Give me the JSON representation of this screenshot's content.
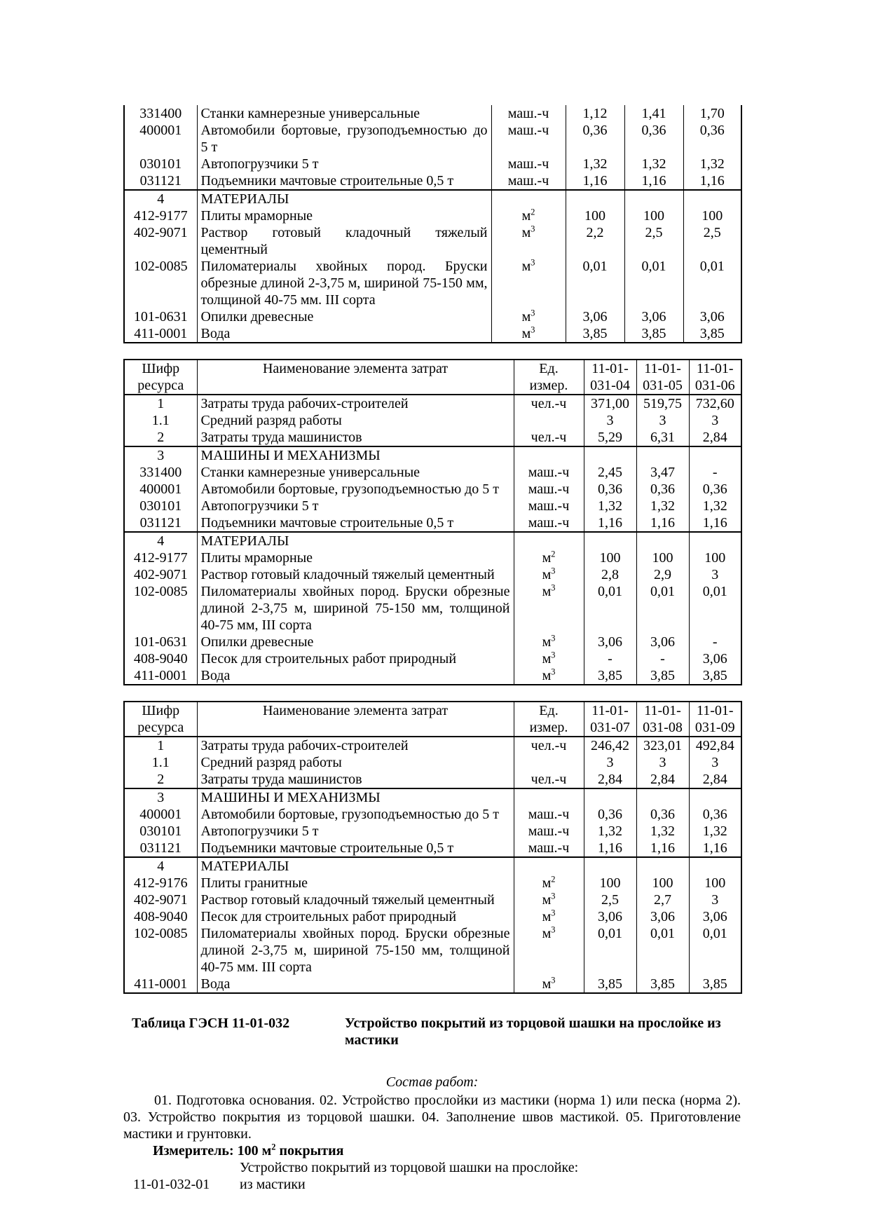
{
  "page": {
    "background": "#ffffff",
    "text_color": "#000000",
    "border_color": "#000000"
  },
  "tables": [
    {
      "title": "continuation of table 11-01-031 (norms 01-03)",
      "header": null,
      "rows": [
        {
          "code": "331400",
          "name": "Станки камнерезные универсальные",
          "unit": "маш.-ч",
          "values": [
            "1,12",
            "1,41",
            "1,70"
          ]
        },
        {
          "code": "400001",
          "name": "Автомобили бортовые, грузоподъемностью до 5 т",
          "unit": "маш.-ч",
          "values": [
            "0,36",
            "0,36",
            "0,36"
          ]
        },
        {
          "code": "030101",
          "name": "Автопогрузчики 5 т",
          "unit": "маш.-ч",
          "values": [
            "1,32",
            "1,32",
            "1,32"
          ]
        },
        {
          "code": "031121",
          "name": "Подъемники мачтовые строительные 0,5 т",
          "unit": "маш.-ч",
          "values": [
            "1,16",
            "1,16",
            "1,16"
          ]
        },
        {
          "code": "4",
          "name": "МАТЕРИАЛЫ",
          "section": true,
          "unit": "",
          "values": [
            "",
            "",
            ""
          ]
        },
        {
          "code": "412-9177",
          "name": "Плиты мраморные",
          "unit": "м2",
          "values": [
            "100",
            "100",
            "100"
          ]
        },
        {
          "code": "402-9071",
          "name": "Раствор готовый кладочный тяжелый цементный",
          "unit": "м3",
          "values": [
            "2,2",
            "2,5",
            "2,5"
          ]
        },
        {
          "code": "102-0085",
          "name": "Пиломатериалы хвойных пород. Бруски обрезные длиной 2-3,75 м, шириной 75-150 мм, толщиной 40-75 мм. III сорта",
          "unit": "м3",
          "values": [
            "0,01",
            "0,01",
            "0,01"
          ]
        },
        {
          "code": "101-0631",
          "name": "Опилки древесные",
          "unit": "м3",
          "values": [
            "3,06",
            "3,06",
            "3,06"
          ]
        },
        {
          "code": "411-0001",
          "name": "Вода",
          "unit": "м3",
          "values": [
            "3,85",
            "3,85",
            "3,85"
          ]
        }
      ]
    },
    {
      "title": "table 11-01-031 norms 04-06",
      "header": {
        "code": "Шифр\nресурса",
        "name": "Наименование элемента затрат",
        "unit": "Ед.\nизмер.",
        "norms": [
          "11-01-\n031-04",
          "11-01-\n031-05",
          "11-01-\n031-06"
        ]
      },
      "rows": [
        {
          "code": "1",
          "name": "Затраты труда рабочих-строителей",
          "unit": "чел.-ч",
          "values": [
            "371,00",
            "519,75",
            "732,60"
          ]
        },
        {
          "code": "1.1",
          "name": "Средний разряд работы",
          "unit": "",
          "values": [
            "3",
            "3",
            "3"
          ]
        },
        {
          "code": "2",
          "name": "Затраты труда машинистов",
          "unit": "чел.-ч",
          "values": [
            "5,29",
            "6,31",
            "2,84"
          ]
        },
        {
          "code": "3",
          "name": "МАШИНЫ И МЕХАНИЗМЫ",
          "section": true,
          "unit": "",
          "values": [
            "",
            "",
            ""
          ]
        },
        {
          "code": "331400",
          "name": "Станки камнерезные универсальные",
          "unit": "маш.-ч",
          "values": [
            "2,45",
            "3,47",
            "-"
          ]
        },
        {
          "code": "400001",
          "name": "Автомобили бортовые, грузоподъемностью до 5 т",
          "unit": "маш.-ч",
          "values": [
            "0,36",
            "0,36",
            "0,36"
          ]
        },
        {
          "code": "030101",
          "name": "Автопогрузчики 5 т",
          "unit": "маш.-ч",
          "values": [
            "1,32",
            "1,32",
            "1,32"
          ]
        },
        {
          "code": "031121",
          "name": "Подъемники мачтовые строительные 0,5 т",
          "unit": "маш.-ч",
          "values": [
            "1,16",
            "1,16",
            "1,16"
          ]
        },
        {
          "code": "4",
          "name": "МАТЕРИАЛЫ",
          "section": true,
          "unit": "",
          "values": [
            "",
            "",
            ""
          ]
        },
        {
          "code": "412-9177",
          "name": "Плиты мраморные",
          "unit": "м2",
          "values": [
            "100",
            "100",
            "100"
          ]
        },
        {
          "code": "402-9071",
          "name": "Раствор готовый кладочный тяжелый цементный",
          "unit": "м3",
          "values": [
            "2,8",
            "2,9",
            "3"
          ]
        },
        {
          "code": "102-0085",
          "name": "Пиломатериалы хвойных пород. Бруски обрезные длиной 2-3,75 м, шириной 75-150 мм, толщиной 40-75 мм, III сорта",
          "unit": "м3",
          "values": [
            "0,01",
            "0,01",
            "0,01"
          ]
        },
        {
          "code": "101-0631",
          "name": "Опилки древесные",
          "unit": "м3",
          "values": [
            "3,06",
            "3,06",
            "-"
          ]
        },
        {
          "code": "408-9040",
          "name": "Песок для строительных работ природный",
          "unit": "м3",
          "values": [
            "-",
            "-",
            "3,06"
          ]
        },
        {
          "code": "411-0001",
          "name": "Вода",
          "unit": "м3",
          "values": [
            "3,85",
            "3,85",
            "3,85"
          ]
        }
      ]
    },
    {
      "title": "table 11-01-031 norms 07-09",
      "header": {
        "code": "Шифр\nресурса",
        "name": "Наименование элемента затрат",
        "unit": "Ед.\nизмер.",
        "norms": [
          "11-01-\n031-07",
          "11-01-\n031-08",
          "11-01-\n031-09"
        ]
      },
      "rows": [
        {
          "code": "1",
          "name": "Затраты труда рабочих-строителей",
          "unit": "чел.-ч",
          "values": [
            "246,42",
            "323,01",
            "492,84"
          ]
        },
        {
          "code": "1.1",
          "name": "Средний разряд работы",
          "unit": "",
          "values": [
            "3",
            "3",
            "3"
          ]
        },
        {
          "code": "2",
          "name": "Затраты труда машинистов",
          "unit": "чел.-ч",
          "values": [
            "2,84",
            "2,84",
            "2,84"
          ]
        },
        {
          "code": "3",
          "name": "МАШИНЫ И МЕХАНИЗМЫ",
          "section": true,
          "unit": "",
          "values": [
            "",
            "",
            ""
          ]
        },
        {
          "code": "400001",
          "name": "Автомобили бортовые, грузоподъемностью до 5 т",
          "unit": "маш.-ч",
          "values": [
            "0,36",
            "0,36",
            "0,36"
          ]
        },
        {
          "code": "030101",
          "name": "Автопогрузчики 5 т",
          "unit": "маш.-ч",
          "values": [
            "1,32",
            "1,32",
            "1,32"
          ]
        },
        {
          "code": "031121",
          "name": "Подъемники мачтовые строительные 0,5 т",
          "unit": "маш.-ч",
          "values": [
            "1,16",
            "1,16",
            "1,16"
          ]
        },
        {
          "code": "4",
          "name": "МАТЕРИАЛЫ",
          "section": true,
          "unit": "",
          "values": [
            "",
            "",
            ""
          ]
        },
        {
          "code": "412-9176",
          "name": "Плиты гранитные",
          "unit": "м2",
          "values": [
            "100",
            "100",
            "100"
          ]
        },
        {
          "code": "402-9071",
          "name": "Раствор готовый кладочный тяжелый цементный",
          "unit": "м3",
          "values": [
            "2,5",
            "2,7",
            "3"
          ]
        },
        {
          "code": "408-9040",
          "name": "Песок для строительных работ природный",
          "unit": "м3",
          "values": [
            "3,06",
            "3,06",
            "3,06"
          ]
        },
        {
          "code": "102-0085",
          "name": "Пиломатериалы хвойных пород. Бруски обрезные длиной 2-3,75 м, шириной 75-150 мм, толщиной 40-75 мм. III сорта",
          "unit": "м3",
          "values": [
            "0,01",
            "0,01",
            "0,01"
          ]
        },
        {
          "code": "411-0001",
          "name": "Вода",
          "unit": "м3",
          "values": [
            "3,85",
            "3,85",
            "3,85"
          ]
        }
      ]
    }
  ],
  "footer": {
    "table_label": "Таблица ГЭСН 11-01-032",
    "table_title": "Устройство покрытий из торцовой шашки на прослойке из мастики",
    "works_heading": "Состав работ:",
    "works_text": "01. Подготовка основания. 02. Устройство прослойки из мастики (норма 1) или песка (норма 2). 03. Устройство покрытия из торцовой шашки. 04. Заполнение швов мастикой. 05. Приготовление мастики и грунтовки.",
    "meter": {
      "prefix": "Измеритель: 100 м",
      "sup": "2",
      "suffix": " покрытия"
    },
    "group_title": "Устройство покрытий из торцовой шашки на прослойке:",
    "items": [
      {
        "code": "11-01-032-01",
        "name": "из мастики"
      }
    ]
  }
}
